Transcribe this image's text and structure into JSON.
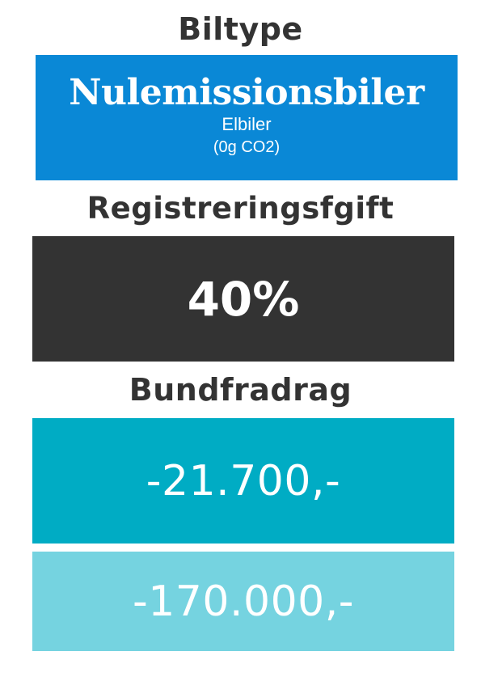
{
  "sections": {
    "biltype": {
      "heading": "Biltype",
      "title": "Nulemissionsbiler",
      "subtitle": "Elbiler",
      "note": "(0g CO2)"
    },
    "registreringsafgift": {
      "heading": "Registreringsfgift",
      "value": "40%"
    },
    "bundfradrag": {
      "heading": "Bundfradrag",
      "values": [
        "-21.700,-",
        "-170.000,-"
      ]
    }
  },
  "colors": {
    "heading_text": "#333333",
    "type_box": "#0a88d6",
    "percent_box": "#333333",
    "deduction_box_1": "#00acc4",
    "deduction_box_2": "#75d3e0"
  }
}
